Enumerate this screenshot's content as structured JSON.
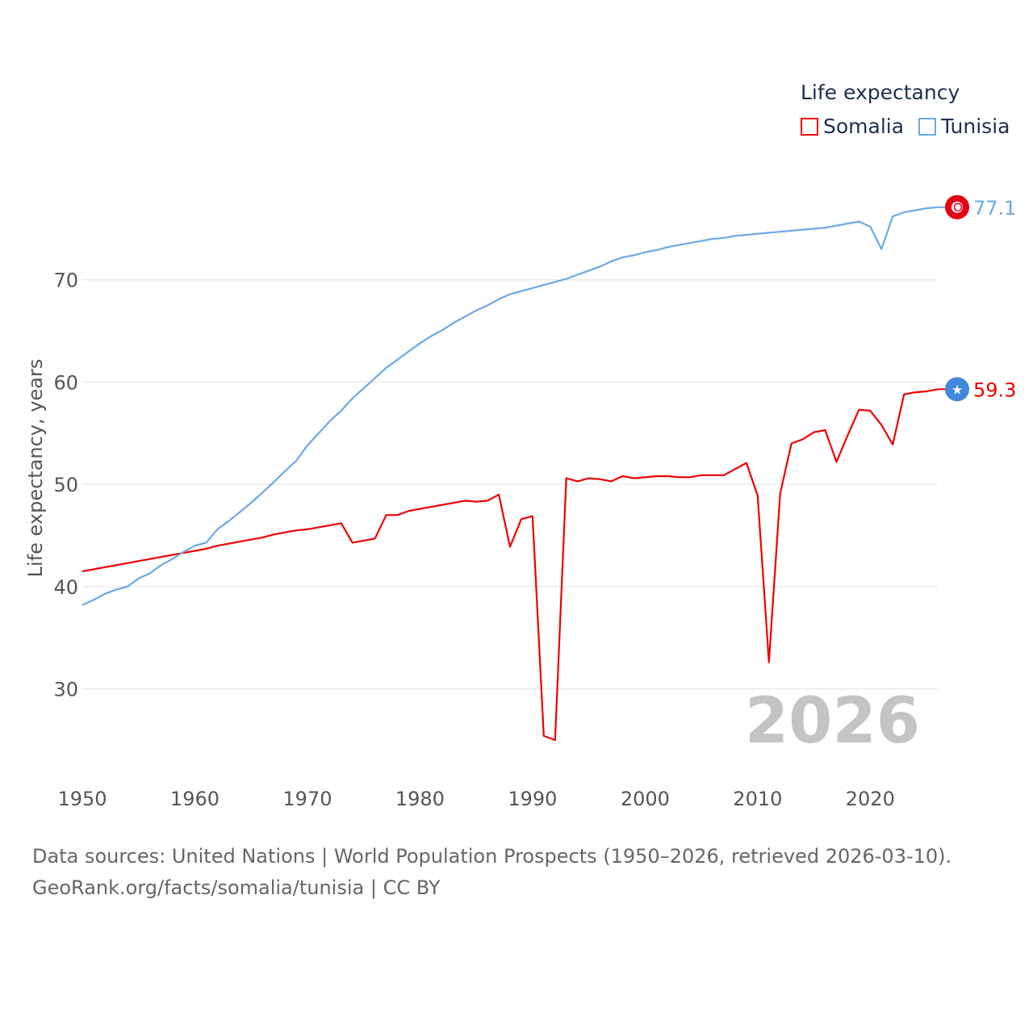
{
  "legend": {
    "title": "Life expectancy",
    "items": [
      {
        "label": "Somalia",
        "color": "#ee0000"
      },
      {
        "label": "Tunisia",
        "color": "#6aa9e6"
      }
    ]
  },
  "source": {
    "line1": "Data sources: United Nations | World Population Prospects (1950–2026, retrieved 2026-03-10).",
    "line2": "GeoRank.org/facts/somalia/tunisia | CC BY"
  },
  "chart_data": {
    "type": "line",
    "ylabel": "Life expectancy, years",
    "xlabel": "",
    "xlim": [
      1950,
      2026
    ],
    "ylim": [
      22,
      80
    ],
    "x_ticks": [
      1950,
      1960,
      1970,
      1980,
      1990,
      2000,
      2010,
      2020
    ],
    "y_ticks": [
      30,
      40,
      50,
      60,
      70
    ],
    "watermark_year": "2026",
    "x": [
      1950,
      1951,
      1952,
      1953,
      1954,
      1955,
      1956,
      1957,
      1958,
      1959,
      1960,
      1961,
      1962,
      1963,
      1964,
      1965,
      1966,
      1967,
      1968,
      1969,
      1970,
      1971,
      1972,
      1973,
      1974,
      1975,
      1976,
      1977,
      1978,
      1979,
      1980,
      1981,
      1982,
      1983,
      1984,
      1985,
      1986,
      1987,
      1988,
      1989,
      1990,
      1991,
      1992,
      1993,
      1994,
      1995,
      1996,
      1997,
      1998,
      1999,
      2000,
      2001,
      2002,
      2003,
      2004,
      2005,
      2006,
      2007,
      2008,
      2009,
      2010,
      2011,
      2012,
      2013,
      2014,
      2015,
      2016,
      2017,
      2018,
      2019,
      2020,
      2021,
      2022,
      2023,
      2024,
      2025,
      2026
    ],
    "series": [
      {
        "name": "Somalia",
        "color": "#ee0000",
        "end_label": "59.3",
        "values": [
          41.5,
          41.7,
          41.9,
          42.1,
          42.3,
          42.5,
          42.7,
          42.9,
          43.1,
          43.3,
          43.5,
          43.7,
          44.0,
          44.2,
          44.4,
          44.6,
          44.8,
          45.1,
          45.3,
          45.5,
          45.6,
          45.8,
          46.0,
          46.2,
          44.3,
          44.5,
          44.7,
          47.0,
          47.0,
          47.4,
          47.6,
          47.8,
          48.0,
          48.2,
          48.4,
          48.3,
          48.4,
          49.0,
          43.9,
          46.6,
          46.9,
          25.4,
          25.0,
          50.6,
          50.3,
          50.6,
          50.5,
          50.3,
          50.8,
          50.6,
          50.7,
          50.8,
          50.8,
          50.7,
          50.7,
          50.9,
          50.9,
          50.9,
          51.5,
          52.1,
          48.9,
          32.6,
          49.1,
          54.0,
          54.4,
          55.1,
          55.3,
          52.2,
          54.8,
          57.3,
          57.2,
          55.8,
          53.9,
          58.8,
          59.0,
          59.1,
          59.3
        ]
      },
      {
        "name": "Tunisia",
        "color": "#6aa9e6",
        "end_label": "77.1",
        "values": [
          38.2,
          38.7,
          39.3,
          39.7,
          40.0,
          40.8,
          41.3,
          42.1,
          42.7,
          43.4,
          44.0,
          44.3,
          45.6,
          46.4,
          47.3,
          48.2,
          49.2,
          50.2,
          51.3,
          52.3,
          53.8,
          55.0,
          56.2,
          57.2,
          58.4,
          59.4,
          60.4,
          61.4,
          62.2,
          63.0,
          63.8,
          64.5,
          65.1,
          65.8,
          66.4,
          67.0,
          67.5,
          68.1,
          68.6,
          68.9,
          69.2,
          69.5,
          69.8,
          70.1,
          70.5,
          70.9,
          71.3,
          71.8,
          72.2,
          72.4,
          72.7,
          72.9,
          73.2,
          73.4,
          73.6,
          73.8,
          74.0,
          74.1,
          74.3,
          74.4,
          74.5,
          74.6,
          74.7,
          74.8,
          74.9,
          75.0,
          75.1,
          75.3,
          75.5,
          75.7,
          75.2,
          73.0,
          76.2,
          76.6,
          76.8,
          77.0,
          77.1
        ]
      }
    ]
  }
}
